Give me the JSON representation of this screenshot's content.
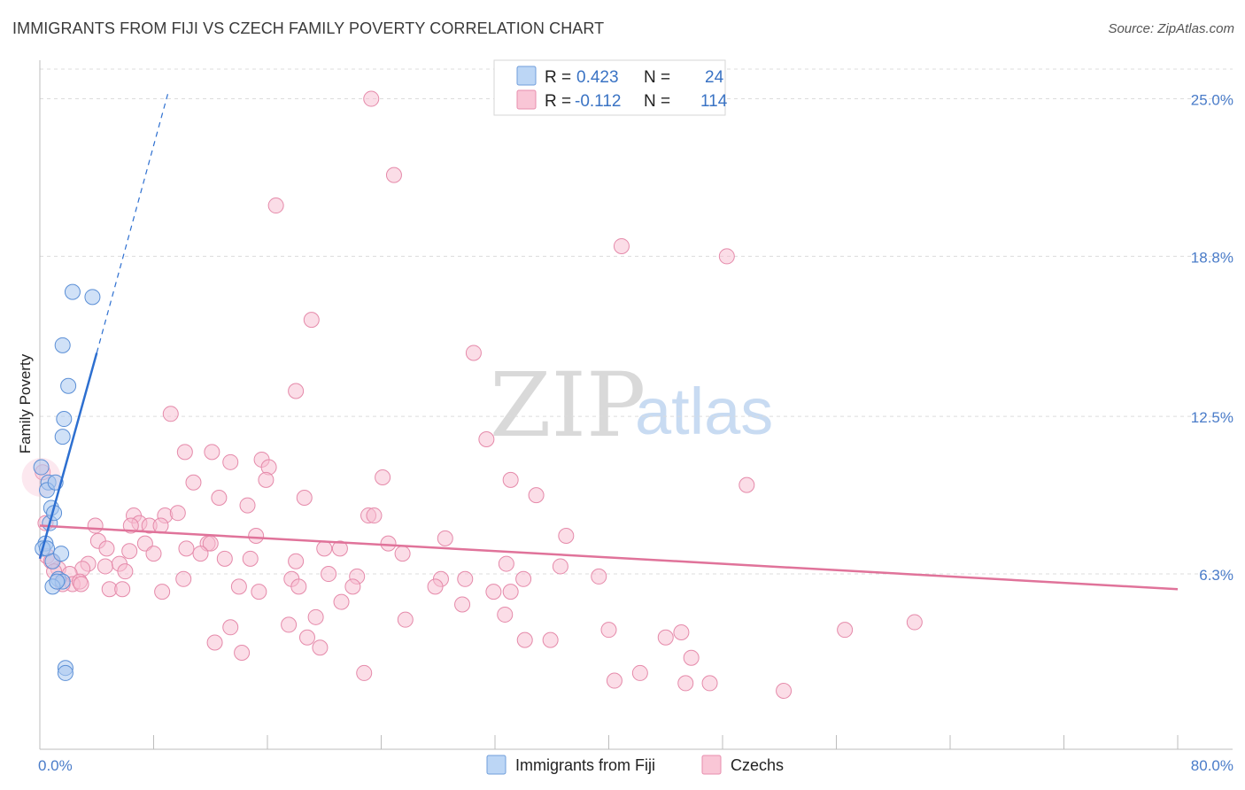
{
  "header": {
    "title": "IMMIGRANTS FROM FIJI VS CZECH FAMILY POVERTY CORRELATION CHART",
    "source": "Source: ZipAtlas.com"
  },
  "watermark": {
    "part1": "ZIP",
    "part2": "atlas"
  },
  "legend": {
    "rows": [
      {
        "r_label": "R =",
        "r_value": "0.423",
        "n_label": "N =",
        "n_value": "24"
      },
      {
        "r_label": "R =",
        "r_value": "-0.112",
        "n_label": "N =",
        "n_value": "114"
      }
    ]
  },
  "bottom_legend": {
    "items": [
      {
        "label": "Immigrants from Fiji"
      },
      {
        "label": "Czechs"
      }
    ]
  },
  "colors": {
    "fiji_fill": "#a9c8f0",
    "fiji_stroke": "#5b8fd6",
    "fiji_line": "#2d6fd0",
    "czech_fill": "#f7bcd0",
    "czech_stroke": "#e58aaa",
    "czech_line": "#e0739a",
    "grid": "#dcdcdc",
    "tick_label": "#4a7cc9"
  },
  "chart_data": {
    "type": "scatter",
    "title": "IMMIGRANTS FROM FIJI VS CZECH FAMILY POVERTY CORRELATION CHART",
    "xlabel": "",
    "ylabel": "Family Poverty",
    "xlim": [
      0,
      80
    ],
    "ylim": [
      -0.6,
      26.1
    ],
    "x_tick_labels": [
      "0.0%",
      "80.0%"
    ],
    "y_ticks": [
      6.3,
      12.5,
      18.8,
      25.0
    ],
    "y_tick_labels": [
      "6.3%",
      "12.5%",
      "18.8%",
      "25.0%"
    ],
    "series": [
      {
        "name": "Immigrants from Fiji",
        "r": 0.423,
        "n": 24,
        "trend": {
          "x": [
            0.0,
            4.0
          ],
          "y": [
            6.9,
            15.0
          ]
        },
        "trend_extension": {
          "x": [
            4.0,
            9.0
          ],
          "y": [
            15.0,
            25.2
          ]
        },
        "points": [
          [
            0.1,
            10.5
          ],
          [
            0.6,
            9.9
          ],
          [
            0.5,
            9.6
          ],
          [
            0.8,
            8.9
          ],
          [
            0.7,
            8.3
          ],
          [
            1.1,
            9.9
          ],
          [
            1.0,
            8.7
          ],
          [
            0.4,
            7.5
          ],
          [
            0.2,
            7.3
          ],
          [
            0.5,
            7.3
          ],
          [
            0.9,
            6.8
          ],
          [
            1.5,
            7.1
          ],
          [
            1.3,
            6.1
          ],
          [
            1.6,
            6.0
          ],
          [
            0.9,
            5.8
          ],
          [
            1.8,
            2.6
          ],
          [
            1.8,
            2.4
          ],
          [
            1.6,
            11.7
          ],
          [
            1.7,
            12.4
          ],
          [
            2.0,
            13.7
          ],
          [
            1.6,
            15.3
          ],
          [
            2.3,
            17.4
          ],
          [
            3.7,
            17.2
          ],
          [
            1.2,
            6.0
          ]
        ]
      },
      {
        "name": "Czechs",
        "r": -0.112,
        "n": 114,
        "trend": {
          "x": [
            0.0,
            80.0
          ],
          "y": [
            8.2,
            5.7
          ]
        },
        "points": [
          [
            23.3,
            25.0
          ],
          [
            24.9,
            22.0
          ],
          [
            16.6,
            20.8
          ],
          [
            40.9,
            19.2
          ],
          [
            48.3,
            18.8
          ],
          [
            19.1,
            16.3
          ],
          [
            30.5,
            15.0
          ],
          [
            18.0,
            13.5
          ],
          [
            9.2,
            12.6
          ],
          [
            31.4,
            11.6
          ],
          [
            10.2,
            11.1
          ],
          [
            12.1,
            11.1
          ],
          [
            13.4,
            10.7
          ],
          [
            15.6,
            10.8
          ],
          [
            16.1,
            10.5
          ],
          [
            15.9,
            10.0
          ],
          [
            10.8,
            9.9
          ],
          [
            24.1,
            10.1
          ],
          [
            33.1,
            10.0
          ],
          [
            49.7,
            9.8
          ],
          [
            34.9,
            9.4
          ],
          [
            12.6,
            9.3
          ],
          [
            18.6,
            9.3
          ],
          [
            14.6,
            9.0
          ],
          [
            6.6,
            8.6
          ],
          [
            7.0,
            8.3
          ],
          [
            8.8,
            8.6
          ],
          [
            9.7,
            8.7
          ],
          [
            23.1,
            8.6
          ],
          [
            23.5,
            8.6
          ],
          [
            3.9,
            8.2
          ],
          [
            6.4,
            8.2
          ],
          [
            7.7,
            8.2
          ],
          [
            8.5,
            8.2
          ],
          [
            15.2,
            7.8
          ],
          [
            28.5,
            7.7
          ],
          [
            37.0,
            7.8
          ],
          [
            4.1,
            7.6
          ],
          [
            7.4,
            7.5
          ],
          [
            11.8,
            7.5
          ],
          [
            12.0,
            7.5
          ],
          [
            20.0,
            7.3
          ],
          [
            21.1,
            7.3
          ],
          [
            24.5,
            7.5
          ],
          [
            25.5,
            7.1
          ],
          [
            4.7,
            7.3
          ],
          [
            6.3,
            7.2
          ],
          [
            8.0,
            7.1
          ],
          [
            10.3,
            7.3
          ],
          [
            11.3,
            7.1
          ],
          [
            13.0,
            6.9
          ],
          [
            14.8,
            6.9
          ],
          [
            18.0,
            6.8
          ],
          [
            32.8,
            6.7
          ],
          [
            36.6,
            6.6
          ],
          [
            3.4,
            6.7
          ],
          [
            4.6,
            6.6
          ],
          [
            5.6,
            6.7
          ],
          [
            6.0,
            6.4
          ],
          [
            1.3,
            6.5
          ],
          [
            3.0,
            6.5
          ],
          [
            2.1,
            6.3
          ],
          [
            10.1,
            6.1
          ],
          [
            17.7,
            6.1
          ],
          [
            20.3,
            6.3
          ],
          [
            22.3,
            6.2
          ],
          [
            28.2,
            6.1
          ],
          [
            29.9,
            6.1
          ],
          [
            34.0,
            6.1
          ],
          [
            39.3,
            6.2
          ],
          [
            2.3,
            5.9
          ],
          [
            2.8,
            6.0
          ],
          [
            2.9,
            5.9
          ],
          [
            4.9,
            5.7
          ],
          [
            5.8,
            5.7
          ],
          [
            8.6,
            5.6
          ],
          [
            14.0,
            5.8
          ],
          [
            15.4,
            5.6
          ],
          [
            18.2,
            5.8
          ],
          [
            22.0,
            5.8
          ],
          [
            27.8,
            5.8
          ],
          [
            31.9,
            5.6
          ],
          [
            33.1,
            5.6
          ],
          [
            21.2,
            5.2
          ],
          [
            29.7,
            5.1
          ],
          [
            32.7,
            4.7
          ],
          [
            19.4,
            4.6
          ],
          [
            17.5,
            4.3
          ],
          [
            25.7,
            4.5
          ],
          [
            13.4,
            4.2
          ],
          [
            18.8,
            3.8
          ],
          [
            34.1,
            3.7
          ],
          [
            35.9,
            3.7
          ],
          [
            40.0,
            4.1
          ],
          [
            44.0,
            3.8
          ],
          [
            45.1,
            4.0
          ],
          [
            56.6,
            4.1
          ],
          [
            61.5,
            4.4
          ],
          [
            12.3,
            3.6
          ],
          [
            19.7,
            3.4
          ],
          [
            14.2,
            3.2
          ],
          [
            45.8,
            3.0
          ],
          [
            22.8,
            2.4
          ],
          [
            42.2,
            2.4
          ],
          [
            40.4,
            2.1
          ],
          [
            45.4,
            2.0
          ],
          [
            47.1,
            2.0
          ],
          [
            52.3,
            1.7
          ],
          [
            0.2,
            10.3
          ],
          [
            0.4,
            8.3
          ],
          [
            0.5,
            7.0
          ],
          [
            0.8,
            6.8
          ],
          [
            1.0,
            6.4
          ],
          [
            1.6,
            5.9
          ]
        ]
      }
    ]
  }
}
